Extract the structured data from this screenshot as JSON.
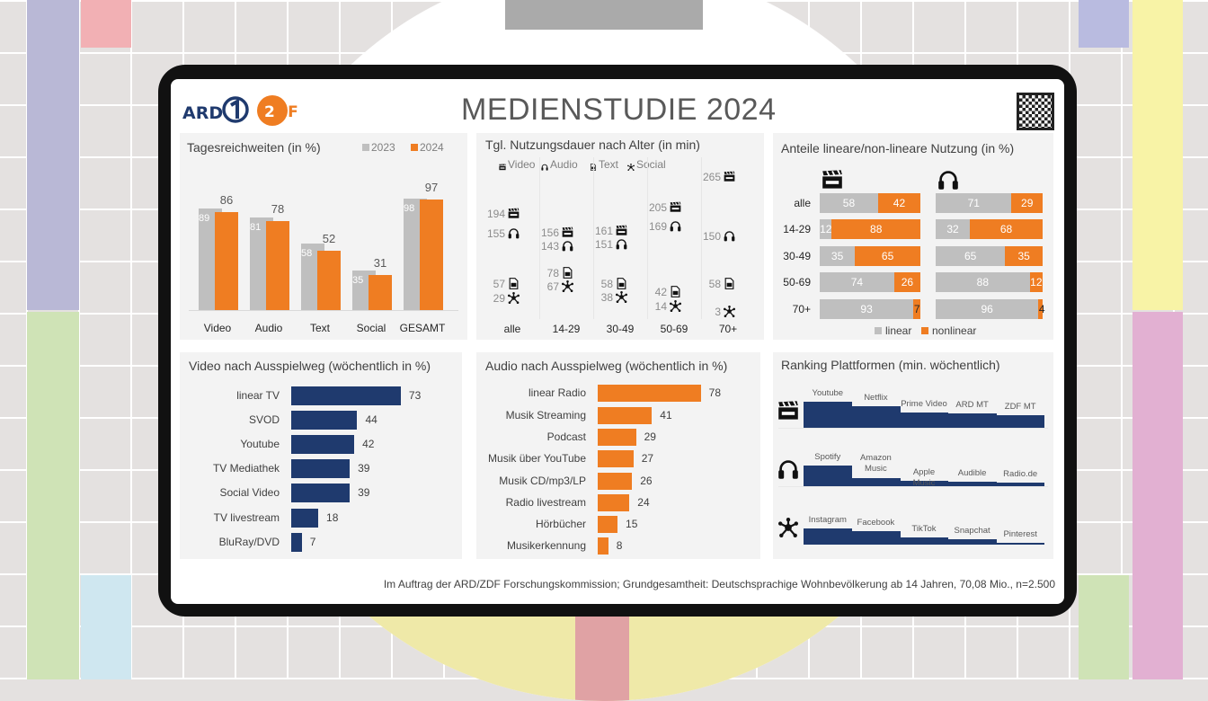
{
  "header": {
    "title": "MEDIENSTUDIE 2024",
    "logos": [
      "ARD",
      "ZDF"
    ],
    "qr": "qr-code"
  },
  "colors": {
    "navy": "#1f3a6e",
    "orange": "#ef7d22",
    "gray": "#bfbfbf"
  },
  "chart_data": [
    {
      "type": "bar",
      "title": "Tagesreichweiten (in %)",
      "categories": [
        "Video",
        "Audio",
        "Text",
        "Social",
        "GESAMT"
      ],
      "series": [
        {
          "name": "2023",
          "values": [
            89,
            81,
            58,
            35,
            98
          ],
          "color": "#bfbfbf"
        },
        {
          "name": "2024",
          "values": [
            86,
            78,
            52,
            31,
            97
          ],
          "color": "#ef7d22"
        }
      ],
      "ylim": [
        0,
        100
      ],
      "legend": "top-right",
      "grid": false
    },
    {
      "type": "scatter",
      "title": "Tgl. Nutzungsdauer nach Alter (in min)",
      "categories": [
        "alle",
        "14-29",
        "30-49",
        "50-69",
        "70+"
      ],
      "series": [
        {
          "name": "Video",
          "icon": "clapperboard-icon",
          "values": [
            194,
            156,
            161,
            205,
            265
          ]
        },
        {
          "name": "Audio",
          "icon": "headphones-icon",
          "values": [
            155,
            143,
            151,
            169,
            150
          ]
        },
        {
          "name": "Text",
          "icon": "document-icon",
          "values": [
            57,
            78,
            58,
            42,
            58
          ]
        },
        {
          "name": "Social",
          "icon": "social-network-icon",
          "values": [
            29,
            67,
            38,
            14,
            3
          ]
        }
      ],
      "ylim": [
        0,
        270
      ],
      "legend": "top"
    },
    {
      "type": "bar",
      "title": "Anteile lineare/non-lineare Nutzung (in %)",
      "orientation": "horizontal-stacked",
      "categories": [
        "alle",
        "14-29",
        "30-49",
        "50-69",
        "70+"
      ],
      "groups": [
        {
          "icon": "clapperboard-icon",
          "linear": [
            58,
            12,
            35,
            74,
            93
          ],
          "nonlinear": [
            42,
            88,
            65,
            26,
            7
          ]
        },
        {
          "icon": "headphones-icon",
          "linear": [
            71,
            32,
            65,
            88,
            96
          ],
          "nonlinear": [
            29,
            68,
            35,
            12,
            4
          ]
        }
      ],
      "legend_labels": [
        "linear",
        "nonlinear"
      ],
      "legend": "bottom"
    },
    {
      "type": "bar",
      "title": "Video nach Ausspielweg  (wöchentlich in %)",
      "orientation": "horizontal",
      "categories": [
        "linear TV",
        "SVOD",
        "Youtube",
        "TV Mediathek",
        "Social Video",
        "TV livestream",
        "BluRay/DVD"
      ],
      "values": [
        73,
        44,
        42,
        39,
        39,
        18,
        7
      ],
      "color": "#1f3a6e"
    },
    {
      "type": "bar",
      "title": "Audio nach Ausspielweg  (wöchentlich in %)",
      "orientation": "horizontal",
      "categories": [
        "linear Radio",
        "Musik Streaming",
        "Podcast",
        "Musik über YouTube",
        "Musik CD/mp3/LP",
        "Radio livestream",
        "Hörbücher",
        "Musikerkennung"
      ],
      "values": [
        78,
        41,
        29,
        27,
        26,
        24,
        15,
        8
      ],
      "color": "#ef7d22"
    },
    {
      "type": "bar",
      "title": "Ranking Plattformen (min. wöchentlich)",
      "rows": [
        {
          "icon": "clapperboard-icon",
          "labels": [
            "Youtube",
            "Netflix",
            "Prime Video",
            "ARD MT",
            "ZDF MT"
          ],
          "level": [
            1,
            0.83,
            0.59,
            0.55,
            0.48
          ]
        },
        {
          "icon": "headphones-icon",
          "labels": [
            "Spotify",
            "Amazon Music",
            "Apple Music",
            "Audible",
            "Radio.de"
          ],
          "level": [
            1,
            0.39,
            0.26,
            0.22,
            0.17
          ]
        },
        {
          "icon": "social-network-icon",
          "labels": [
            "Instagram",
            "Facebook",
            "TikTok",
            "Snapchat",
            "Pinterest"
          ],
          "level": [
            1,
            0.83,
            0.44,
            0.33,
            0.11
          ]
        }
      ]
    }
  ],
  "footer": {
    "text": "Im Auftrag der ARD/ZDF Forschungskommission; Grundgesamtheit: Deutschsprachige Wohnbevölkerung ab 14 Jahren, 70,08 Mio., n=2.500"
  }
}
